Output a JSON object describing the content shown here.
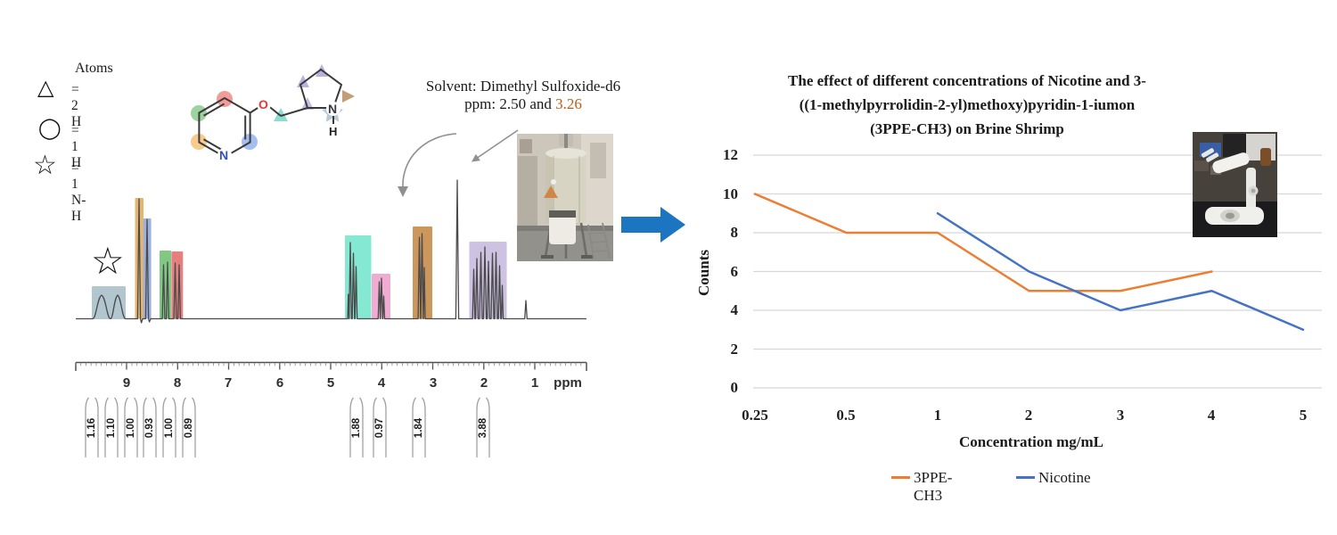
{
  "nmr": {
    "legend": {
      "title": "Atoms",
      "items": [
        {
          "symbol": "△",
          "label": "= 2 H"
        },
        {
          "symbol": "◯",
          "label": "= 1 H"
        },
        {
          "symbol": "☆",
          "label": "= 1 N-H"
        }
      ]
    },
    "annotation_star": "☆",
    "solvent": {
      "line1": "Solvent: Dimethyl Sulfoxide-d6",
      "line2_prefix": "ppm: 2.50 and ",
      "line2_highlight": "3.26",
      "highlight_color": "#c55a11"
    },
    "molecule_atoms": {
      "ring_n": "N",
      "o": "O",
      "pyrrolidine_n": "N",
      "nh": "H"
    },
    "axis": {
      "ticks": [
        "9",
        "8",
        "7",
        "6",
        "5",
        "4",
        "3",
        "2",
        "1"
      ],
      "unit": "ppm"
    },
    "integrals_left": [
      "1.16",
      "1.10",
      "1.00",
      "0.93",
      "1.00",
      "0.89"
    ],
    "integrals_right": [
      "1.88",
      "0.97",
      "1.84",
      "3.88"
    ]
  },
  "chart_data": {
    "type": "line",
    "title": "The effect of different concentrations of Nicotine and 3-((1-methylpyrrolidin-2-yl)methoxy)pyridin-1-iumon (3PPE-CH3) on Brine Shrimp",
    "title_lines": [
      "The effect of different concentrations of Nicotine and 3-",
      "((1-methylpyrrolidin-2-yl)methoxy)pyridin-1-iumon",
      "(3PPE-CH3) on Brine Shrimp"
    ],
    "categories": [
      "0.25",
      "0.5",
      "1",
      "2",
      "3",
      "4",
      "5"
    ],
    "series": [
      {
        "name": "3PPE-CH3",
        "color": "#ED7D31",
        "values": [
          10,
          8,
          8,
          5,
          5,
          6,
          null
        ]
      },
      {
        "name": "Nicotine",
        "color": "#4472C4",
        "values": [
          null,
          null,
          9,
          6,
          4,
          5,
          3
        ]
      }
    ],
    "xlabel": "Concentration mg/mL",
    "ylabel": "Counts",
    "ylim": [
      0,
      12
    ],
    "yticks": [
      0,
      2,
      4,
      6,
      8,
      10,
      12
    ],
    "grid": true,
    "legend_position": "bottom"
  }
}
